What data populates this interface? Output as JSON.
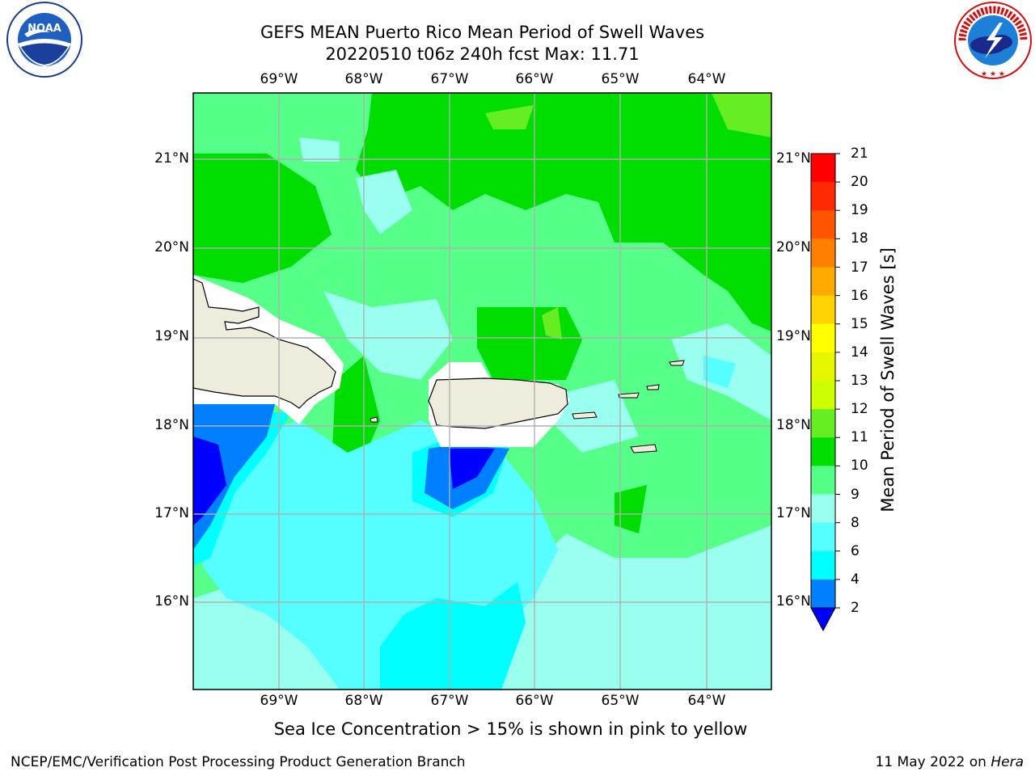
{
  "title": {
    "line1": "GEFS MEAN Puerto Rico Mean Period of Swell Waves",
    "line2": "20220510 t06z 240h fcst   Max: 11.71"
  },
  "map": {
    "lon_labels": [
      "69°W",
      "68°W",
      "67°W",
      "66°W",
      "65°W",
      "64°W"
    ],
    "lat_labels": [
      "21°N",
      "20°N",
      "19°N",
      "18°N",
      "17°N",
      "16°N"
    ]
  },
  "colorbar": {
    "title": "Mean Period of Swell Waves [s]",
    "levels": [
      "21",
      "20",
      "19",
      "18",
      "17",
      "16",
      "15",
      "14",
      "13",
      "12",
      "11",
      "10",
      "9",
      "8",
      "6",
      "4",
      "2"
    ],
    "colors": [
      "#ff0000",
      "#ff2a00",
      "#ff5500",
      "#ff8000",
      "#ffaa00",
      "#ffd400",
      "#ffff00",
      "#e6f500",
      "#ccff00",
      "#66ee22",
      "#00dd00",
      "#55ff88",
      "#99ffee",
      "#55ffff",
      "#00ffff",
      "#0080ff",
      "#0000ff"
    ]
  },
  "palette": {
    "land": "#eeecdc",
    "grid": "#b0b0b0",
    "deep_blue": "#0000ff",
    "mid_blue": "#0080ff",
    "cyan": "#00ffff",
    "light_cyan": "#55ffff",
    "pale_cyan": "#99ffff",
    "light_green": "#55ff88",
    "green": "#00dd00",
    "yellow_green": "#66ee22"
  },
  "footer": {
    "sea_ice_note": "Sea Ice Concentration > 15% is shown in pink to yellow",
    "left": "NCEP/EMC/Verification Post Processing Product Generation Branch",
    "right_date": "11 May 2022 on ",
    "right_host": "Hera"
  },
  "logos": {
    "left_name": "NOAA",
    "right_name": "NATIONAL WEATHER SERVICE"
  }
}
